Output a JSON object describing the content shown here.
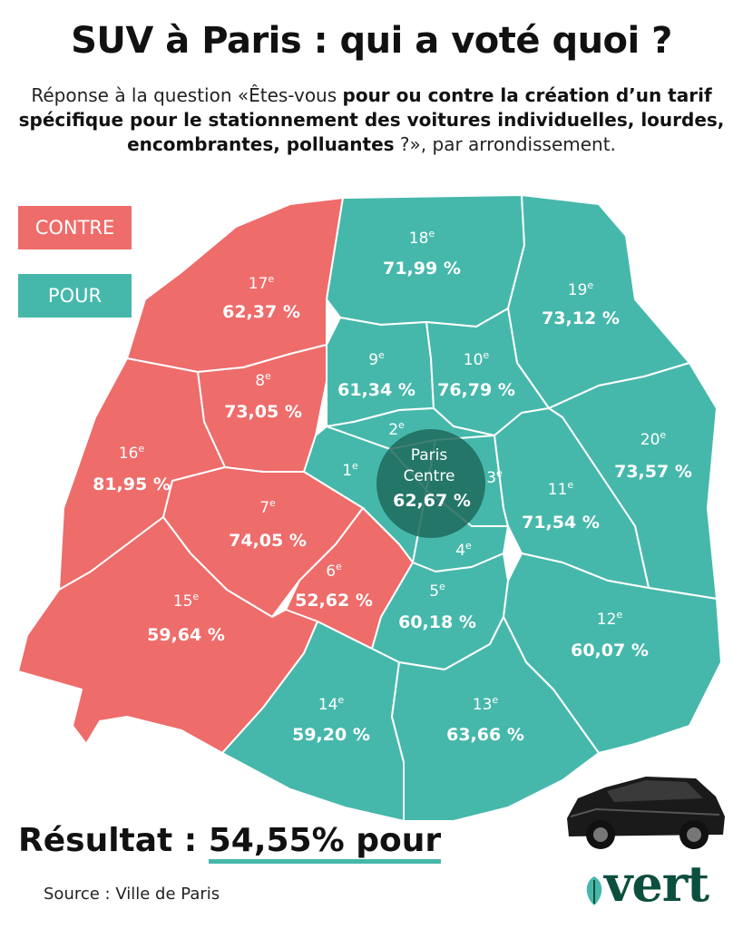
{
  "title": "SUV à Paris : qui a voté quoi ?",
  "subtitle": {
    "part1": "Réponse à la question «Êtes-vous ",
    "part2": "pour ou contre la création d’un tarif spécifique pour le stationnement des voitures individuelles, lourdes, encombrantes, polluantes",
    "part3": " ?», par arrondissement."
  },
  "legend": {
    "contre": "CONTRE",
    "pour": "POUR"
  },
  "colors": {
    "contre": "#ee6c6a",
    "pour": "#46b8ab",
    "centre": "#1f6a5c",
    "border": "#ffffff"
  },
  "districts": [
    {
      "id": "17",
      "label": "17",
      "sup": "e",
      "pct": "62,37 %",
      "vote": "contre"
    },
    {
      "id": "18",
      "label": "18",
      "sup": "e",
      "pct": "71,99 %",
      "vote": "pour"
    },
    {
      "id": "19",
      "label": "19",
      "sup": "e",
      "pct": "73,12 %",
      "vote": "pour"
    },
    {
      "id": "8",
      "label": "8",
      "sup": "e",
      "pct": "73,05 %",
      "vote": "contre"
    },
    {
      "id": "9",
      "label": "9",
      "sup": "e",
      "pct": "61,34 %",
      "vote": "pour"
    },
    {
      "id": "10",
      "label": "10",
      "sup": "e",
      "pct": "76,79 %",
      "vote": "pour"
    },
    {
      "id": "16",
      "label": "16",
      "sup": "e",
      "pct": "81,95 %",
      "vote": "contre"
    },
    {
      "id": "20",
      "label": "20",
      "sup": "e",
      "pct": "73,57 %",
      "vote": "pour"
    },
    {
      "id": "7",
      "label": "7",
      "sup": "e",
      "pct": "74,05 %",
      "vote": "contre"
    },
    {
      "id": "11",
      "label": "11",
      "sup": "e",
      "pct": "71,54 %",
      "vote": "pour"
    },
    {
      "id": "6",
      "label": "6",
      "sup": "e",
      "pct": "52,62 %",
      "vote": "contre"
    },
    {
      "id": "5",
      "label": "5",
      "sup": "e",
      "pct": "60,18 %",
      "vote": "pour"
    },
    {
      "id": "15",
      "label": "15",
      "sup": "e",
      "pct": "59,64 %",
      "vote": "contre"
    },
    {
      "id": "12",
      "label": "12",
      "sup": "e",
      "pct": "60,07 %",
      "vote": "pour"
    },
    {
      "id": "14",
      "label": "14",
      "sup": "e",
      "pct": "59,20 %",
      "vote": "pour"
    },
    {
      "id": "13",
      "label": "13",
      "sup": "e",
      "pct": "63,66 %",
      "vote": "pour"
    }
  ],
  "centre": {
    "line1": "Paris",
    "line2": "Centre",
    "pct": "62,67 %",
    "sub_districts": [
      {
        "label": "1",
        "sup": "e"
      },
      {
        "label": "2",
        "sup": "e"
      },
      {
        "label": "3",
        "sup": "e"
      },
      {
        "label": "4",
        "sup": "e"
      }
    ]
  },
  "result": {
    "label": "Résultat : ",
    "value": "54,55% pour"
  },
  "source": "Source : Ville de Paris",
  "logo": "vert",
  "icons": {
    "car": "suv-car-image",
    "leaf": "leaf-icon"
  }
}
